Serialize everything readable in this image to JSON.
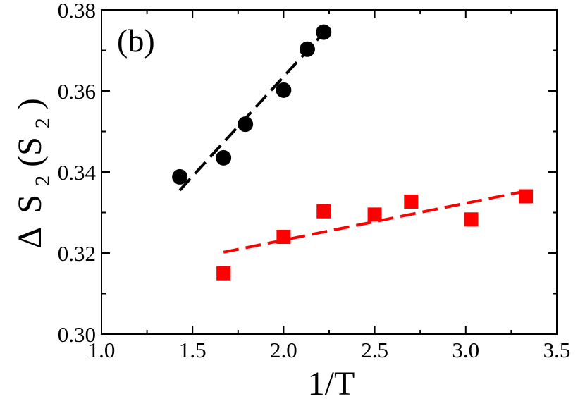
{
  "chart_data": {
    "type": "scatter",
    "panel_label": "(b)",
    "xlabel": "1/T",
    "ylabel": {
      "delta": "Δ",
      "s1": "S",
      "sub1": "2",
      "mid": "(S",
      "sub2": "2",
      "close": ")"
    },
    "xlim": [
      1.0,
      3.5
    ],
    "ylim": [
      0.3,
      0.38
    ],
    "x_ticks": [
      1.0,
      1.5,
      2.0,
      2.5,
      3.0,
      3.5
    ],
    "x_tick_labels": [
      "1.0",
      "1.5",
      "2.0",
      "2.5",
      "3.0",
      "3.5"
    ],
    "y_ticks": [
      0.3,
      0.32,
      0.34,
      0.36,
      0.38
    ],
    "y_tick_labels": [
      "0.30",
      "0.32",
      "0.34",
      "0.36",
      "0.38"
    ],
    "grid": false,
    "series": [
      {
        "name": "circles",
        "marker": "circle",
        "color": "#000000",
        "x": [
          1.43,
          1.67,
          1.79,
          2.0,
          2.13,
          2.22
        ],
        "y": [
          0.3388,
          0.3435,
          0.3518,
          0.3602,
          0.3703,
          0.3745
        ],
        "fit": {
          "x": [
            1.43,
            2.25
          ],
          "y": [
            0.3355,
            0.3758
          ]
        }
      },
      {
        "name": "squares",
        "marker": "square",
        "color": "#ff0000",
        "x": [
          1.67,
          2.0,
          2.22,
          2.5,
          2.7,
          3.03,
          3.33
        ],
        "y": [
          0.315,
          0.324,
          0.3303,
          0.3295,
          0.3327,
          0.3283,
          0.334
        ],
        "fit": {
          "x": [
            1.67,
            3.33
          ],
          "y": [
            0.3202,
            0.3353
          ]
        }
      }
    ]
  }
}
